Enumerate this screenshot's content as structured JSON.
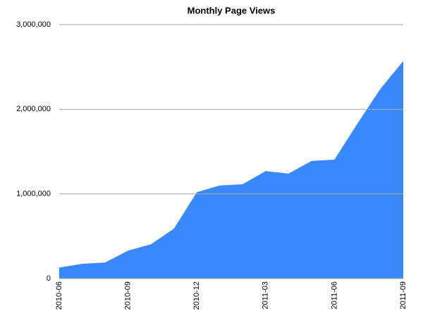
{
  "chart_data": {
    "type": "area",
    "title": "Monthly Page Views",
    "categories": [
      "2010-06",
      null,
      null,
      "2010-09",
      null,
      null,
      "2010-12",
      null,
      null,
      "2011-03",
      null,
      null,
      "2011-06",
      null,
      null,
      "2011-09"
    ],
    "values": [
      130000,
      175000,
      190000,
      330000,
      405000,
      590000,
      1020000,
      1100000,
      1115000,
      1270000,
      1240000,
      1390000,
      1405000,
      1830000,
      2240000,
      2570000
    ],
    "color": "#3a88fe",
    "ylim": [
      0,
      3000000
    ],
    "yticks": [
      0,
      {
        "value": 1000000,
        "label": "1,000,000"
      },
      {
        "value": 2000000,
        "label": "2,000,000"
      },
      {
        "value": 3000000,
        "label": "3,000,000"
      }
    ],
    "grid": true
  }
}
